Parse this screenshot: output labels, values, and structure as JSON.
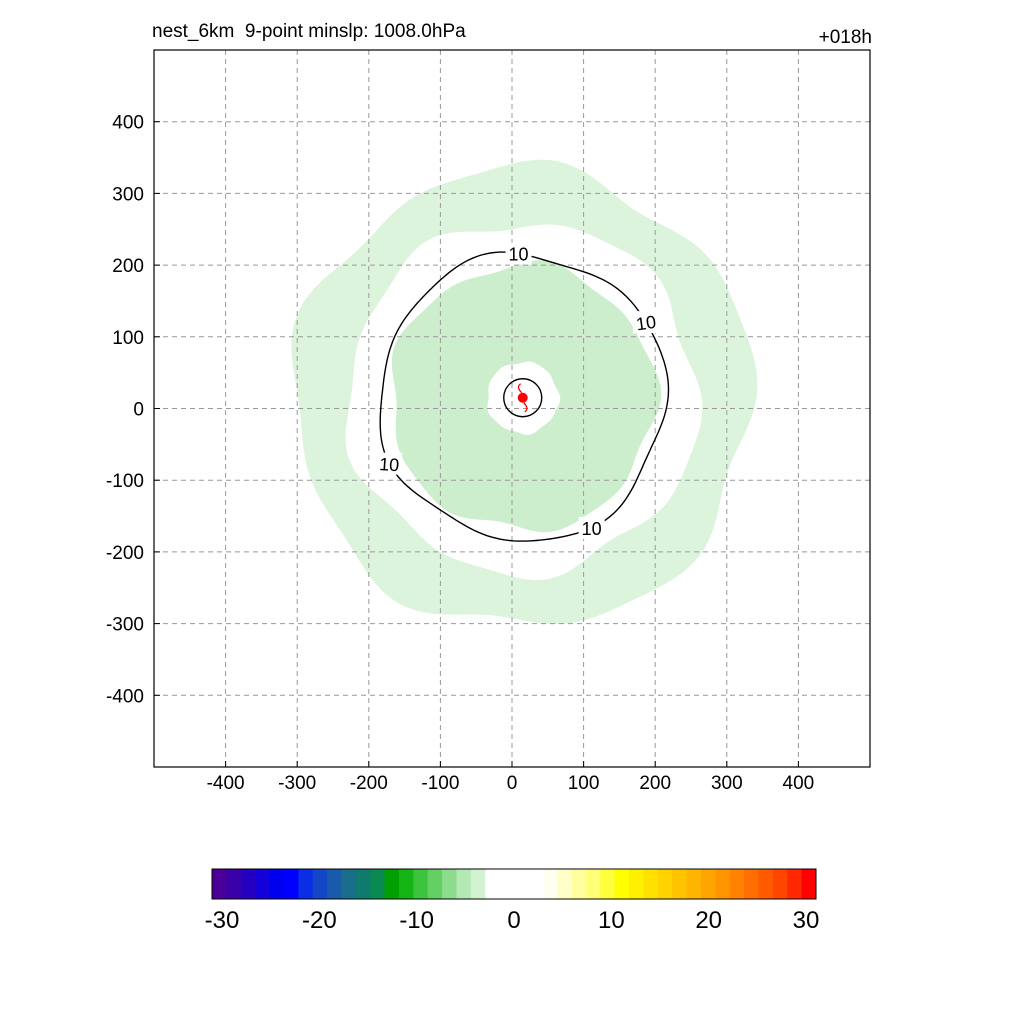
{
  "header": {
    "left_title": "nest_6km  9-point minslp: 1008.0hPa",
    "right_title": "+018h"
  },
  "chart_data": {
    "type": "contour",
    "xlim": [
      -500,
      500
    ],
    "ylim": [
      -500,
      500
    ],
    "xticks": [
      -400,
      -300,
      -200,
      -100,
      0,
      100,
      200,
      300,
      400
    ],
    "yticks": [
      -400,
      -300,
      -200,
      -100,
      0,
      100,
      200,
      300,
      400
    ],
    "grid": true,
    "storm_center": {
      "x": 15,
      "y": 15
    },
    "contour_lines": [
      {
        "level": 10,
        "label": "10"
      }
    ],
    "filled_bands": [
      {
        "value_range": [
          -6,
          -3
        ],
        "shape": "ring",
        "inner_radius": 245,
        "outer_radius": 320,
        "color": "#dcf4dc"
      },
      {
        "value_range": [
          -9,
          -6
        ],
        "shape": "ring",
        "inner_radius": 50,
        "outer_radius": 185,
        "color": "#cdeecd"
      }
    ],
    "colorbar": {
      "min": -30,
      "max": 30,
      "tick_labels": [
        "-30",
        "-20",
        "-10",
        "0",
        "10",
        "20",
        "30"
      ],
      "colors": [
        "#4a0096",
        "#3a00aa",
        "#2600c0",
        "#1400d8",
        "#0000f0",
        "#0000ff",
        "#0a2ee6",
        "#1446c8",
        "#1a5aaa",
        "#1a6e8c",
        "#0f7a6e",
        "#0a8a50",
        "#00a000",
        "#14b414",
        "#3cc43c",
        "#64d064",
        "#8cdc8c",
        "#b4e8b4",
        "#d2f2d2",
        "#ffffff",
        "#ffffff",
        "#ffffff",
        "#ffffff",
        "#fffff0",
        "#ffffc8",
        "#ffffa0",
        "#ffff78",
        "#ffff3c",
        "#ffff00",
        "#fff000",
        "#ffe100",
        "#ffd200",
        "#ffc300",
        "#ffb400",
        "#ffa500",
        "#ff9600",
        "#ff8200",
        "#ff6e00",
        "#ff5a00",
        "#ff4600",
        "#ff2800",
        "#ff0000"
      ]
    }
  }
}
